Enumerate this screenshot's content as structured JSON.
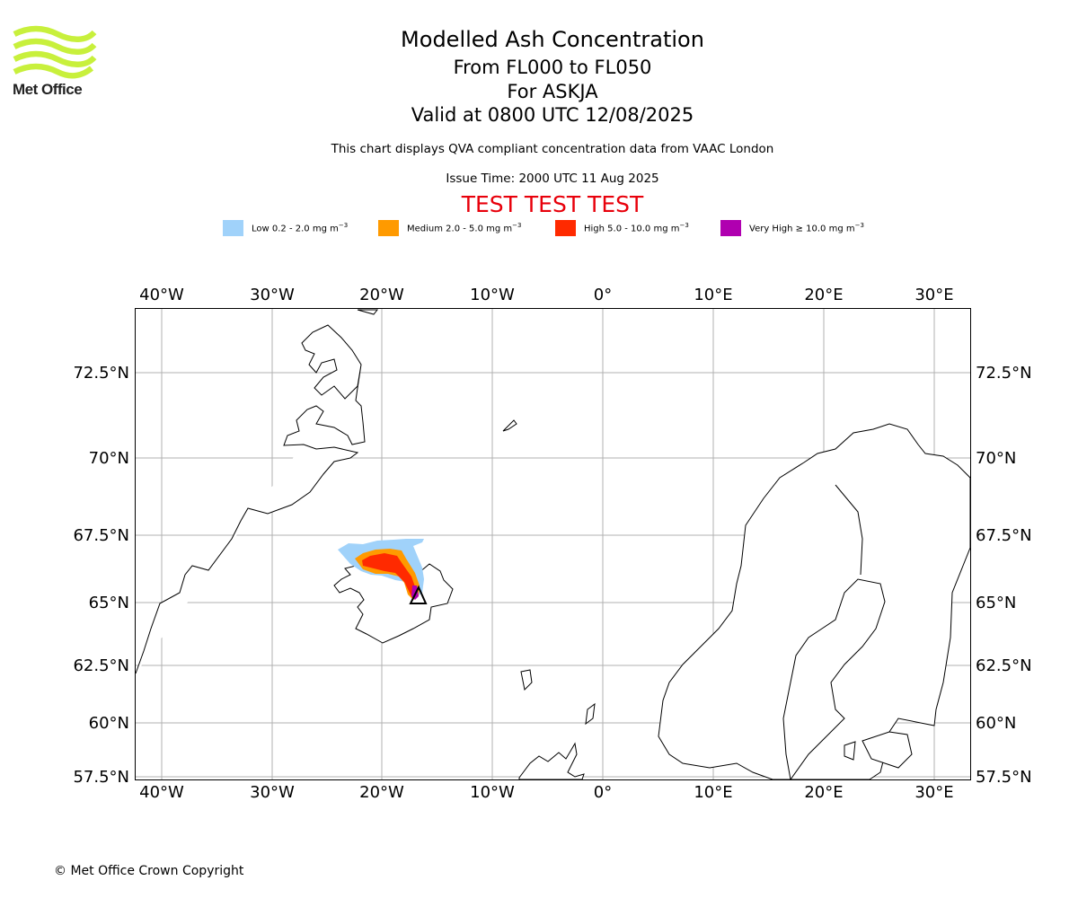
{
  "branding": {
    "logo_text": "Met Office",
    "logo_color": "#c8f03c"
  },
  "header": {
    "title": "Modelled Ash Concentration",
    "levels": "From FL000 to FL050",
    "volcano": "For ASKJA",
    "valid": "Valid at 0800 UTC 12/08/2025",
    "note": "This chart displays QVA compliant concentration data from VAAC London",
    "issue": "Issue Time: 2000 UTC 11 Aug 2025",
    "test_banner": "TEST TEST TEST"
  },
  "legend": [
    {
      "label": "Low 0.2 - 2.0 mg m",
      "color": "#a0d2fa"
    },
    {
      "label": "Medium 2.0 - 5.0 mg m",
      "color": "#ff9a00"
    },
    {
      "label": "High 5.0 - 10.0 mg m",
      "color": "#ff2a00"
    },
    {
      "label": "Very High ≥ 10.0 mg m",
      "color": "#b000b0"
    }
  ],
  "legend_unit_exponent": "−3",
  "map": {
    "extent": {
      "lon": [
        -42.5,
        33
      ],
      "lat": [
        57.3,
        74.5
      ]
    },
    "lon_ticks": [
      "40°W",
      "30°W",
      "20°W",
      "10°W",
      "0°",
      "10°E",
      "20°E",
      "30°E"
    ],
    "lat_ticks": [
      "72.5°N",
      "70°N",
      "67.5°N",
      "65°N",
      "62.5°N",
      "60°N",
      "57.5°N"
    ],
    "volcano_name": "ASKJA",
    "volcano_position": {
      "lon": -16.8,
      "lat": 65.05
    }
  },
  "footer": {
    "copyright": "© Met Office Crown Copyright"
  }
}
